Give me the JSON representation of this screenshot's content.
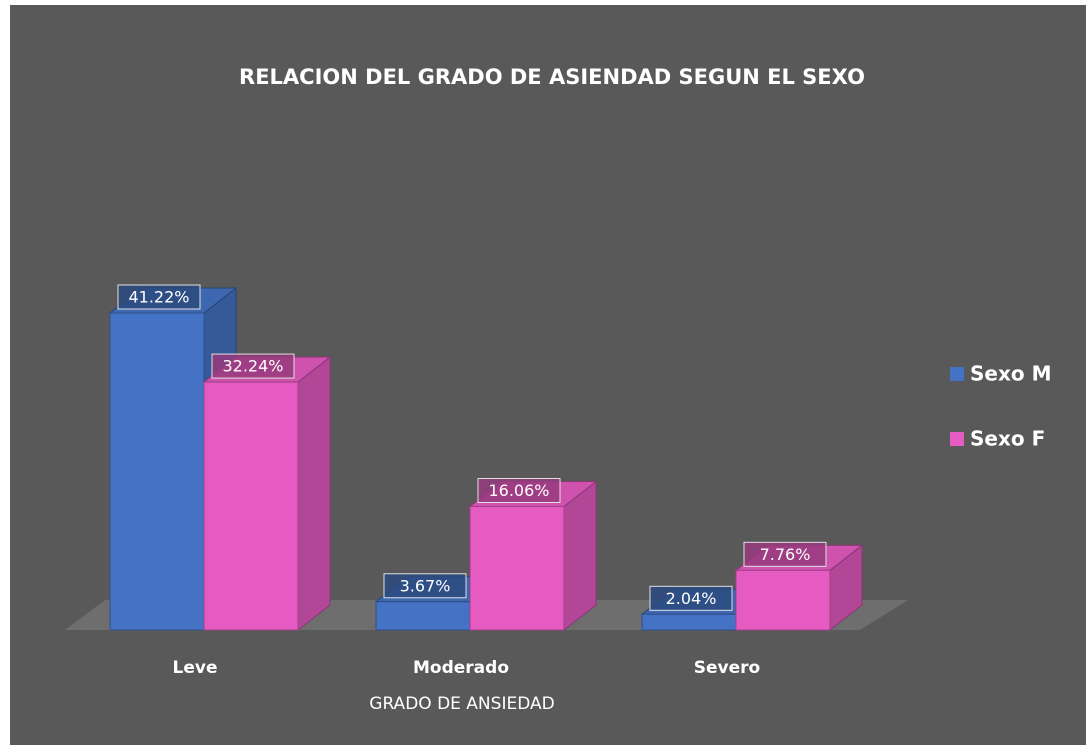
{
  "chart_data": {
    "type": "bar3d",
    "title": "RELACION DEL GRADO DE ASIENDAD SEGUN EL SEXO",
    "x_label": "GRADO DE ANSIEDAD",
    "categories": [
      "Leve",
      "Moderado",
      "Severo"
    ],
    "series": [
      {
        "name": "Sexo M",
        "color": "#4472c4",
        "values": [
          41.22,
          3.67,
          2.04
        ],
        "value_labels": [
          "41.22%",
          "3.67%",
          "2.04%"
        ]
      },
      {
        "name": "Sexo F",
        "color": "#e65bc1",
        "values": [
          32.24,
          16.06,
          7.76
        ],
        "value_labels": [
          "32.24%",
          "16.06%",
          "7.76%"
        ]
      }
    ],
    "legend": "right"
  }
}
